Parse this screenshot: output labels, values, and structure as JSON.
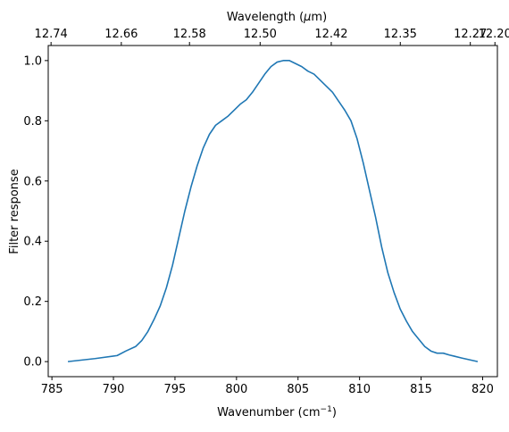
{
  "chart_data": {
    "type": "line",
    "xlabel": "Wavenumber (cm",
    "xlabel_sup": "−1",
    "xlabel_close": ")",
    "ylabel": "Filter response",
    "top_xlabel": "Wavelength (",
    "top_xlabel_mu": "μ",
    "top_xlabel_unit": "m)",
    "xlim": [
      784.7,
      821.2
    ],
    "ylim": [
      -0.05,
      1.05
    ],
    "x_ticks": [
      785,
      790,
      795,
      800,
      805,
      810,
      815,
      820
    ],
    "x_tick_labels": [
      "785",
      "790",
      "795",
      "800",
      "805",
      "810",
      "815",
      "820"
    ],
    "y_ticks": [
      0.0,
      0.2,
      0.4,
      0.6,
      0.8,
      1.0
    ],
    "y_tick_labels": [
      "0.0",
      "0.2",
      "0.4",
      "0.6",
      "0.8",
      "1.0"
    ],
    "top_ticks_wavenumber": [
      784.93,
      790.64,
      796.18,
      801.92,
      807.7,
      813.31,
      819.0,
      821.0
    ],
    "top_tick_labels": [
      "12.74",
      "12.66",
      "12.58",
      "12.50",
      "12.42",
      "12.35",
      "12.27",
      "12.20"
    ],
    "series": [
      {
        "color": "#1f77b4",
        "x": [
          786.3,
          788.5,
          790.3,
          791.0,
          791.8,
          792.3,
          792.8,
          793.3,
          793.8,
          794.3,
          794.8,
          795.3,
          795.8,
          796.3,
          796.8,
          797.3,
          797.8,
          798.3,
          798.8,
          799.3,
          799.8,
          800.3,
          800.8,
          801.3,
          801.8,
          802.3,
          802.8,
          803.3,
          803.8,
          804.3,
          804.8,
          805.3,
          805.8,
          806.3,
          806.8,
          807.3,
          807.8,
          808.3,
          808.8,
          809.3,
          809.8,
          810.3,
          810.8,
          811.3,
          811.8,
          812.3,
          812.8,
          813.3,
          813.8,
          814.3,
          814.8,
          815.3,
          815.8,
          816.3,
          816.8,
          817.3,
          818.3,
          819.6
        ],
        "y": [
          0.0,
          0.01,
          0.02,
          0.035,
          0.05,
          0.07,
          0.1,
          0.14,
          0.185,
          0.245,
          0.32,
          0.41,
          0.5,
          0.58,
          0.65,
          0.71,
          0.755,
          0.785,
          0.8,
          0.815,
          0.835,
          0.855,
          0.87,
          0.895,
          0.925,
          0.955,
          0.98,
          0.995,
          1.0,
          1.0,
          0.99,
          0.98,
          0.965,
          0.955,
          0.935,
          0.915,
          0.895,
          0.865,
          0.835,
          0.8,
          0.74,
          0.66,
          0.57,
          0.48,
          0.38,
          0.295,
          0.23,
          0.175,
          0.135,
          0.1,
          0.075,
          0.05,
          0.035,
          0.028,
          0.028,
          0.022,
          0.012,
          0.0
        ]
      }
    ]
  }
}
